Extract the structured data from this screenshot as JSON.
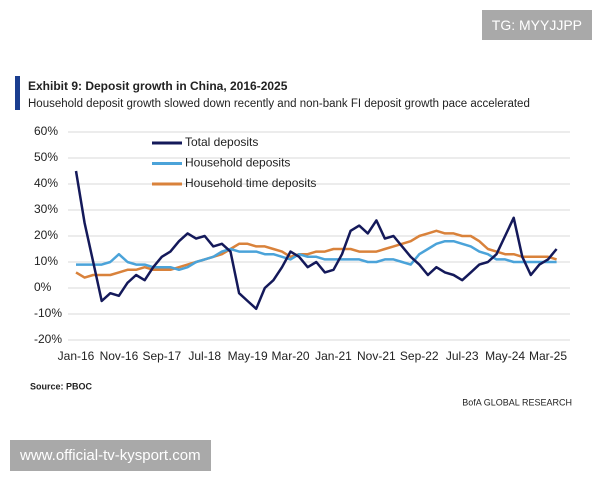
{
  "chart_data": {
    "type": "line",
    "title": "Exhibit 9: Deposit growth in China, 2016-2025",
    "subtitle": "Household deposit growth slowed down recently and non-bank FI deposit growth pace accelerated",
    "source": "Source: PBOC",
    "brand": "BofA GLOBAL RESEARCH",
    "watermark_top": "TG: MYYJJPP",
    "watermark_bottom": "www.official-tv-kysport.com",
    "categories": [
      "Jan-16",
      null,
      null,
      null,
      null,
      "Nov-16",
      null,
      null,
      null,
      null,
      "Sep-17",
      null,
      null,
      null,
      null,
      "Jul-18",
      null,
      null,
      null,
      null,
      "May-19",
      null,
      null,
      null,
      null,
      "Mar-20",
      null,
      null,
      null,
      null,
      "Jan-21",
      null,
      null,
      null,
      null,
      "Nov-21",
      null,
      null,
      null,
      null,
      "Sep-22",
      null,
      null,
      null,
      null,
      "Jul-23",
      null,
      null,
      null,
      null,
      "May-24",
      null,
      null,
      null,
      null,
      "Mar-25",
      null
    ],
    "series": [
      {
        "name": "Total deposits",
        "color": "#14195a",
        "values": [
          45,
          25,
          10,
          -5,
          -2,
          -3,
          2,
          5,
          3,
          8,
          12,
          14,
          18,
          21,
          19,
          20,
          16,
          17,
          14,
          -2,
          -5,
          -8,
          0,
          3,
          8,
          14,
          12,
          8,
          10,
          6,
          7,
          13,
          22,
          24,
          21,
          26,
          19,
          20,
          16,
          12,
          9,
          5,
          8,
          6,
          5,
          3,
          6,
          9,
          10,
          13,
          20,
          27,
          12,
          5,
          9,
          11,
          15
        ]
      },
      {
        "name": "Household deposits",
        "color": "#4ba3d9",
        "values": [
          9,
          9,
          9,
          9,
          10,
          13,
          10,
          9,
          9,
          8,
          8,
          8,
          7,
          8,
          10,
          11,
          12,
          14,
          15,
          14,
          14,
          14,
          13,
          13,
          12,
          11,
          13,
          12,
          12,
          11,
          11,
          11,
          11,
          11,
          10,
          10,
          11,
          11,
          10,
          9,
          13,
          15,
          17,
          18,
          18,
          17,
          16,
          14,
          13,
          11,
          11,
          10,
          10,
          10,
          10,
          10,
          10
        ]
      },
      {
        "name": "Household time deposits",
        "color": "#d9823b",
        "values": [
          6,
          4,
          5,
          5,
          5,
          6,
          7,
          7,
          8,
          7,
          7,
          7,
          8,
          9,
          10,
          11,
          12,
          13,
          15,
          17,
          17,
          16,
          16,
          15,
          14,
          12,
          13,
          13,
          14,
          14,
          15,
          15,
          15,
          14,
          14,
          14,
          15,
          16,
          17,
          18,
          20,
          21,
          22,
          21,
          21,
          20,
          20,
          18,
          15,
          14,
          13,
          13,
          12,
          12,
          12,
          12,
          11
        ]
      }
    ],
    "ylim": [
      -20,
      60
    ],
    "yticks": [
      {
        "value": -20,
        "label": "-20%"
      },
      {
        "value": -10,
        "label": "-10%"
      },
      {
        "value": 0,
        "label": "0%"
      },
      {
        "value": 10,
        "label": "10%"
      },
      {
        "value": 20,
        "label": "20%"
      },
      {
        "value": 30,
        "label": "30%"
      },
      {
        "value": 40,
        "label": "40%"
      },
      {
        "value": 50,
        "label": "50%"
      },
      {
        "value": 60,
        "label": "60%"
      }
    ],
    "grid": true
  }
}
